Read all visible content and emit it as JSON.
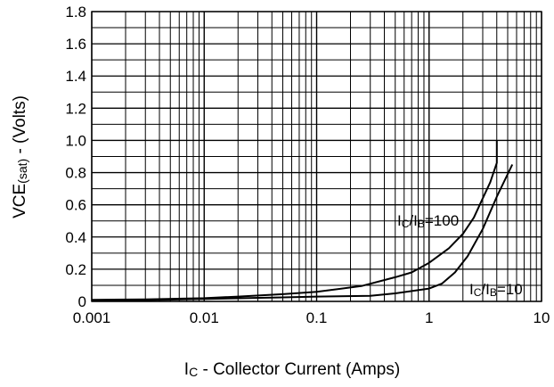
{
  "chart_data": {
    "type": "line",
    "x_scale": "log",
    "xlim": [
      0.001,
      10
    ],
    "ylim": [
      0,
      1.8
    ],
    "grid": true,
    "xlabel": {
      "main": "I",
      "sub": "C",
      "rest": " - Collector Current (Amps)"
    },
    "ylabel": {
      "main": "VCE",
      "sub": "(sat)",
      "rest": " - (Volts)"
    },
    "x_tick_labels": [
      {
        "value": 0.001,
        "label": "0.001"
      },
      {
        "value": 0.01,
        "label": "0.01"
      },
      {
        "value": 0.1,
        "label": "0.1"
      },
      {
        "value": 1,
        "label": "1"
      },
      {
        "value": 10,
        "label": "10"
      }
    ],
    "y_ticks": [
      {
        "value": 1.8,
        "label": "1.8"
      },
      {
        "value": 1.6,
        "label": "1.6"
      },
      {
        "value": 1.4,
        "label": "1.4"
      },
      {
        "value": 1.2,
        "label": "1.2"
      },
      {
        "value": 1.0,
        "label": "1.0"
      },
      {
        "value": 0.8,
        "label": "0.8"
      },
      {
        "value": 0.6,
        "label": "0.6"
      },
      {
        "value": 0.4,
        "label": "0.4"
      },
      {
        "value": 0.2,
        "label": "0.2"
      },
      {
        "value": 0,
        "label": "0"
      }
    ],
    "series": [
      {
        "label": {
          "i1": "I",
          "s1": "C",
          "mid": "/I",
          "s2": "B",
          "rest": "=100"
        },
        "x": [
          0.001,
          0.003,
          0.01,
          0.02,
          0.05,
          0.1,
          0.25,
          0.5,
          0.7,
          1.0,
          1.5,
          2.0,
          2.5,
          3.0,
          3.5,
          4.0,
          4.0
        ],
        "y": [
          0.01,
          0.012,
          0.02,
          0.03,
          0.045,
          0.06,
          0.095,
          0.15,
          0.18,
          0.24,
          0.33,
          0.42,
          0.52,
          0.64,
          0.74,
          0.86,
          1.0
        ]
      },
      {
        "label": {
          "i1": "I",
          "s1": "C",
          "mid": "/I",
          "s2": "B",
          "rest": "=10"
        },
        "x": [
          0.001,
          0.003,
          0.01,
          0.05,
          0.1,
          0.3,
          0.5,
          1.0,
          1.3,
          1.7,
          2.2,
          3.0,
          4.0,
          5.5
        ],
        "y": [
          0.005,
          0.008,
          0.015,
          0.025,
          0.03,
          0.035,
          0.05,
          0.08,
          0.11,
          0.18,
          0.28,
          0.45,
          0.65,
          0.85
        ]
      }
    ]
  }
}
